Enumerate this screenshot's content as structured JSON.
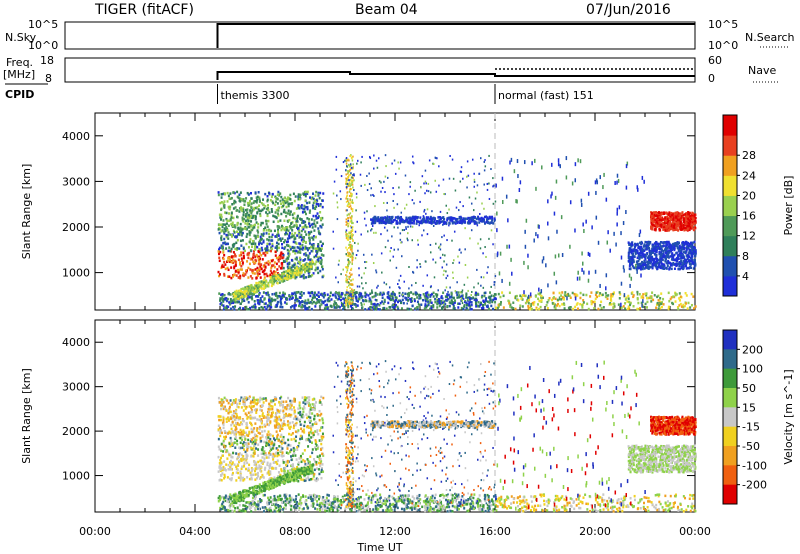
{
  "header": {
    "left_title": "TIGER (fitACF)",
    "center_title": "Beam 04",
    "right_title": "07/Jun/2016"
  },
  "top_panels": {
    "nsky_label": "N.Sky",
    "nsky_ticks": [
      "10^5",
      "10^0"
    ],
    "nsearch_label": "N.Search",
    "nsearch_ticks": [
      "10^5",
      "10^0"
    ],
    "freq_label_1": "Freq.",
    "freq_label_2": "[MHz]",
    "freq_ticks": [
      "18",
      "8"
    ],
    "nave_label": "Nave",
    "nave_ticks": [
      "60",
      "0"
    ],
    "cpid_label": "CPID",
    "cpid_segments": [
      {
        "label": "themis 3300",
        "start_hour": 4.9
      },
      {
        "label": "normal (fast) 151",
        "start_hour": 16.0
      }
    ]
  },
  "chart_data": [
    {
      "type": "heatmap",
      "title": "",
      "ylabel": "Slant Range [km]",
      "ylim": [
        180,
        4500
      ],
      "y_ticks": [
        "1000",
        "2000",
        "3000",
        "4000"
      ],
      "colorbar_label": "Power [dB]",
      "colorbar_ticks": [
        "4",
        "8",
        "12",
        "16",
        "20",
        "24",
        "28"
      ],
      "colorbar_colors": [
        "#1f2fd8",
        "#2050b0",
        "#2f7f5a",
        "#4f9a58",
        "#9ad04f",
        "#f0e030",
        "#f0a020",
        "#e84020",
        "#e00000"
      ]
    },
    {
      "type": "heatmap",
      "title": "",
      "ylabel": "Slant Range [km]",
      "ylim": [
        180,
        4500
      ],
      "y_ticks": [
        "1000",
        "2000",
        "3000",
        "4000"
      ],
      "colorbar_label": "Velocity [m s^-1]",
      "colorbar_ticks": [
        "200",
        "100",
        "50",
        "15",
        "-15",
        "-50",
        "-100",
        "-200"
      ],
      "colorbar_colors": [
        "#2030c0",
        "#2f6a8a",
        "#3e9a3a",
        "#8fd24a",
        "#c8c8c8",
        "#f0d020",
        "#f0a020",
        "#f06010",
        "#e00000"
      ]
    }
  ],
  "x_axis": {
    "label": "Time UT",
    "ticks": [
      "00:00",
      "04:00",
      "08:00",
      "12:00",
      "16:00",
      "20:00",
      "00:00"
    ]
  }
}
